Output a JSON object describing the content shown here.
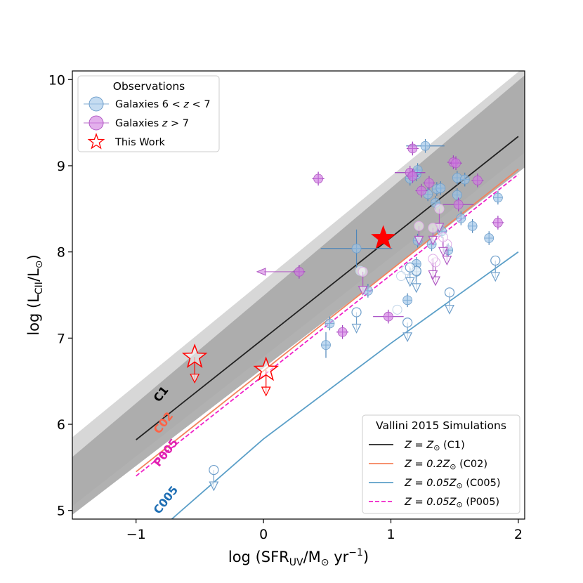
{
  "chart_data": {
    "type": "scatter",
    "xlabel_main": "log (SFR",
    "xlabel_sub": "UV",
    "xlabel_rest": "/M",
    "xlabel_sun": "⊙",
    "xlabel_units": " yr",
    "xlabel_sup": "−1",
    "xlabel_close": ")",
    "ylabel_main": "log (L",
    "ylabel_sub": "CII",
    "ylabel_rest": "/L",
    "ylabel_sun": "⊙",
    "ylabel_close": ")",
    "xlim": [
      -1.5,
      2.05
    ],
    "ylim": [
      4.9,
      10.1
    ],
    "xticks": [
      -1,
      0,
      1,
      2
    ],
    "xtick_labels": [
      "−1",
      "0",
      "1",
      "2"
    ],
    "yticks": [
      5,
      6,
      7,
      8,
      9,
      10
    ],
    "ytick_labels": [
      "5",
      "6",
      "7",
      "8",
      "9",
      "10"
    ],
    "bands": [
      {
        "name": "outer-band",
        "color": "#d3d3d3",
        "x": [
          -1.5,
          2.05
        ],
        "upper": [
          5.85,
          10.15
        ],
        "lower": [
          5.05,
          9.15
        ]
      },
      {
        "name": "inner-band",
        "color": "#a9a9a9",
        "x": [
          -1.5,
          2.05
        ],
        "upper": [
          5.62,
          10.05
        ],
        "lower": [
          4.95,
          8.98
        ]
      }
    ],
    "models": [
      {
        "name": "C1",
        "label": "C1",
        "color": "#222222",
        "dash": false,
        "x": [
          -1,
          2
        ],
        "y": [
          5.82,
          9.34
        ],
        "label_x": -0.82,
        "label_y": 6.25,
        "label_color": "#000000"
      },
      {
        "name": "C02",
        "label": "C02",
        "color": "#f4825c",
        "dash": false,
        "x": [
          -1,
          2
        ],
        "y": [
          5.45,
          8.96
        ],
        "label_x": -0.82,
        "label_y": 5.88,
        "label_color": "#ff6347"
      },
      {
        "name": "P005",
        "label": "P005",
        "color": "#f020c8",
        "dash": true,
        "x": [
          -1,
          2
        ],
        "y": [
          5.4,
          8.9
        ],
        "label_x": -0.82,
        "label_y": 5.5,
        "label_color": "#e020b0"
      },
      {
        "name": "C005",
        "label": "C005",
        "color": "#5b9fc8",
        "dash": false,
        "x": [
          -0.72,
          0,
          1,
          2
        ],
        "y": [
          4.9,
          5.83,
          6.94,
          8.0
        ],
        "label_x": -0.82,
        "label_y": 4.95,
        "label_color": "#1f6fb4"
      }
    ],
    "galaxies_6_7": [
      {
        "x": 1.27,
        "y": 9.23,
        "xerr": 0.15
      },
      {
        "x": 1.15,
        "y": 8.85
      },
      {
        "x": 1.2,
        "y": 8.9
      },
      {
        "x": 1.21,
        "y": 8.95
      },
      {
        "x": 1.36,
        "y": 8.73
      },
      {
        "x": 1.39,
        "y": 8.74
      },
      {
        "x": 1.29,
        "y": 8.67
      },
      {
        "x": 1.52,
        "y": 8.86
      },
      {
        "x": 1.52,
        "y": 8.66
      },
      {
        "x": 1.58,
        "y": 8.84
      },
      {
        "x": 1.55,
        "y": 8.39
      },
      {
        "x": 1.64,
        "y": 8.3
      },
      {
        "x": 1.84,
        "y": 8.63
      },
      {
        "x": 1.35,
        "y": 8.57
      },
      {
        "x": 1.4,
        "y": 8.24
      },
      {
        "x": 1.21,
        "y": 8.13
      },
      {
        "x": 1.32,
        "y": 8.09
      },
      {
        "x": 1.45,
        "y": 8.02
      },
      {
        "x": 1.77,
        "y": 8.16
      },
      {
        "x": 0.73,
        "y": 8.04,
        "xerr": 0.28,
        "yerr": 0.22
      },
      {
        "x": 0.82,
        "y": 7.55
      },
      {
        "x": 1.2,
        "y": 7.86
      },
      {
        "x": 1.2,
        "y": 7.77
      },
      {
        "x": 1.13,
        "y": 7.44
      },
      {
        "x": 0.52,
        "y": 7.17
      },
      {
        "x": 0.49,
        "y": 6.92,
        "yerr": 0.15
      }
    ],
    "galaxies_6_7_open": [
      {
        "x": 0.76,
        "y": 7.78
      },
      {
        "x": 1.12,
        "y": 7.79
      },
      {
        "x": 1.08,
        "y": 7.72
      },
      {
        "x": 1.16,
        "y": 7.69
      },
      {
        "x": 1.05,
        "y": 7.33
      }
    ],
    "galaxies_6_7_limits": [
      {
        "x": 0.73,
        "y": 7.3,
        "len": 0.22
      },
      {
        "x": 1.2,
        "y": 7.78,
        "len": 0.23
      },
      {
        "x": 1.15,
        "y": 7.82,
        "len": 0.2
      },
      {
        "x": 1.46,
        "y": 7.53,
        "len": 0.23
      },
      {
        "x": 1.82,
        "y": 7.9,
        "len": 0.22
      },
      {
        "x": -0.39,
        "y": 5.47,
        "len": 0.22
      },
      {
        "x": 1.13,
        "y": 7.18,
        "len": 0.2
      }
    ],
    "galaxies_gt7": [
      {
        "x": 0.43,
        "y": 8.85
      },
      {
        "x": 1.17,
        "y": 9.2
      },
      {
        "x": 1.49,
        "y": 9.04
      },
      {
        "x": 1.51,
        "y": 9.03
      },
      {
        "x": 1.15,
        "y": 8.92,
        "xerr": 0.12
      },
      {
        "x": 1.17,
        "y": 8.88
      },
      {
        "x": 1.3,
        "y": 8.8
      },
      {
        "x": 1.24,
        "y": 8.71
      },
      {
        "x": 1.53,
        "y": 8.55,
        "xerr": 0.12
      },
      {
        "x": 1.68,
        "y": 8.83
      },
      {
        "x": 1.84,
        "y": 8.34
      },
      {
        "x": 0.62,
        "y": 7.07
      },
      {
        "x": 0.98,
        "y": 7.25,
        "xerr": 0.12
      },
      {
        "x": 0.28,
        "y": 7.77
      }
    ],
    "galaxies_gt7_limits": [
      {
        "x": 1.22,
        "y": 8.3,
        "len": 0.2
      },
      {
        "x": 1.35,
        "y": 7.88,
        "len": 0.25
      },
      {
        "x": 1.33,
        "y": 7.92,
        "len": 0.22
      },
      {
        "x": 1.44,
        "y": 8.09,
        "len": 0.22
      },
      {
        "x": 1.38,
        "y": 8.5,
        "len": 0.25
      },
      {
        "x": 0.78,
        "y": 7.77,
        "len": 0.25
      },
      {
        "x": 1.41,
        "y": 8.17,
        "len": 0.2
      },
      {
        "x": 1.33,
        "y": 8.28,
        "len": 0.18
      }
    ],
    "this_work": [
      {
        "x": 0.94,
        "y": 8.16,
        "filled": true
      },
      {
        "x": -0.54,
        "y": 6.78,
        "filled": false,
        "limit": true
      },
      {
        "x": 0.02,
        "y": 6.63,
        "filled": false,
        "limit": true
      }
    ],
    "left_arrow": {
      "x": 0.28,
      "y": 7.77,
      "to_x": -0.05
    }
  },
  "colors": {
    "blue_fill": "#9ec5e8",
    "blue_edge": "#6f9fcb",
    "blue_err": "#4f86b9",
    "purple_fill": "#d07be0",
    "purple_edge": "#b15ac4",
    "purple_err": "#a040c0",
    "red": "#ff0000"
  },
  "legend_obs": {
    "title": "Observations",
    "item1_a": "Galaxies 6 < ",
    "item1_z": "z",
    "item1_b": " < 7",
    "item2_a": "Galaxies ",
    "item2_z": "z",
    "item2_b": " > 7",
    "item3": "This Work"
  },
  "legend_sim": {
    "title": "Vallini 2015 Simulations",
    "item1_a": "Z = Z",
    "item1_sun": "⊙",
    "item1_b": " (C1)",
    "item2_a": "Z = 0.2Z",
    "item2_sun": "⊙",
    "item2_b": " (C02)",
    "item3_a": "Z = 0.05Z",
    "item3_sun": "⊙",
    "item3_b": " (C005)",
    "item4_a": "Z = 0.05Z",
    "item4_sun": "⊙",
    "item4_b": " (P005)"
  }
}
